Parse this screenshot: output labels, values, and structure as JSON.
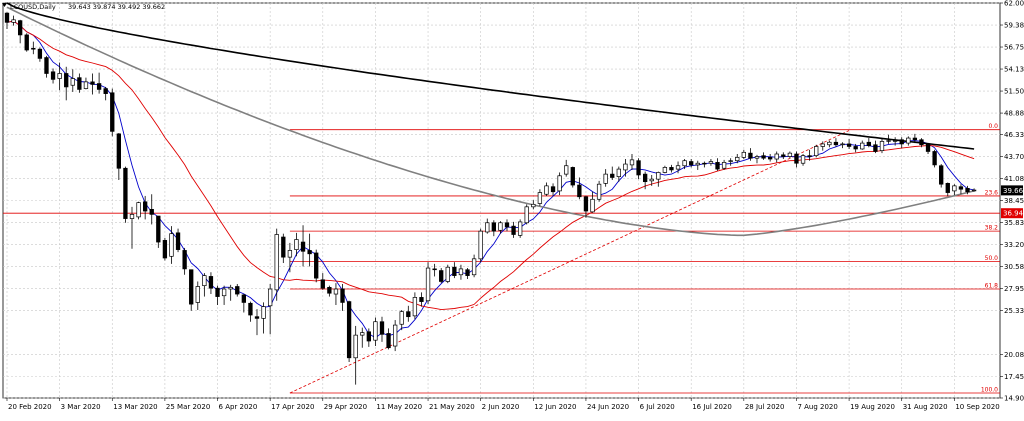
{
  "chart_data": {
    "type": "candlestick",
    "symbol": "LCOUSD,Daily",
    "ohlc_text": "39.643 39.874 39.492 39.662",
    "ylim": [
      14.905,
      62.005
    ],
    "y_ticks": [
      "62.005",
      "59.380",
      "56.755",
      "54.130",
      "51.505",
      "48.880",
      "46.330",
      "43.705",
      "41.080",
      "38.455",
      "35.830",
      "33.205",
      "30.580",
      "27.955",
      "25.330",
      "20.080",
      "17.455",
      "14.905"
    ],
    "x_labels": [
      "20 Feb 2020",
      "3 Mar 2020",
      "13 Mar 2020",
      "25 Mar 2020",
      "6 Apr 2020",
      "17 Apr 2020",
      "29 Apr 2020",
      "11 May 2020",
      "21 May 2020",
      "2 Jun 2020",
      "12 Jun 2020",
      "24 Jun 2020",
      "6 Jul 2020",
      "16 Jul 2020",
      "28 Jul 2020",
      "7 Aug 2020",
      "19 Aug 2020",
      "31 Aug 2020",
      "10 Sep 2020"
    ],
    "x_label_index": [
      0,
      8,
      16,
      24,
      32,
      40,
      48,
      56,
      64,
      72,
      80,
      88,
      96,
      104,
      112,
      120,
      128,
      136,
      144
    ],
    "current_price": "39.662",
    "red_level": "36.940",
    "fib_levels": [
      {
        "label": "0.0",
        "value": 46.9
      },
      {
        "label": "23.6",
        "value": 39.0
      },
      {
        "label": "38.2",
        "value": 34.8
      },
      {
        "label": "50.0",
        "value": 31.2
      },
      {
        "label": "61.8",
        "value": 27.9
      },
      {
        "label": "100.0",
        "value": 15.5
      }
    ],
    "fib_start_index": 43,
    "trendline": {
      "from": [
        43,
        15.5
      ],
      "to": [
        128,
        46.8
      ]
    },
    "bar_count": 148,
    "candles": [
      [
        60.8,
        60.9,
        58.9,
        59.7
      ],
      [
        59.7,
        60.5,
        59.3,
        60.0
      ],
      [
        59.9,
        60.0,
        57.2,
        58.2
      ],
      [
        58.2,
        58.4,
        56.2,
        56.4
      ],
      [
        56.6,
        57.4,
        55.9,
        56.5
      ],
      [
        56.5,
        56.7,
        55.0,
        55.4
      ],
      [
        55.5,
        55.7,
        53.1,
        53.6
      ],
      [
        53.8,
        54.2,
        52.4,
        52.9
      ],
      [
        53.0,
        54.9,
        51.6,
        53.6
      ],
      [
        53.6,
        54.4,
        50.4,
        52.0
      ],
      [
        52.2,
        54.1,
        51.4,
        53.0
      ],
      [
        53.1,
        53.6,
        51.3,
        51.7
      ],
      [
        51.8,
        53.1,
        51.7,
        52.6
      ],
      [
        52.6,
        53.6,
        51.1,
        52.3
      ],
      [
        52.4,
        53.7,
        51.2,
        51.7
      ],
      [
        51.8,
        52.0,
        50.4,
        51.2
      ],
      [
        51.3,
        51.8,
        46.1,
        46.7
      ],
      [
        46.4,
        46.5,
        40.9,
        42.3
      ],
      [
        42.3,
        42.5,
        35.8,
        36.3
      ],
      [
        36.3,
        37.7,
        32.7,
        36.8
      ],
      [
        36.5,
        38.3,
        36.2,
        38.2
      ],
      [
        38.3,
        39.0,
        36.2,
        37.2
      ],
      [
        37.4,
        39.2,
        35.6,
        36.8
      ],
      [
        36.6,
        36.6,
        32.8,
        33.5
      ],
      [
        33.7,
        34.0,
        31.3,
        31.6
      ],
      [
        31.8,
        35.4,
        30.9,
        34.5
      ],
      [
        34.6,
        35.1,
        32.3,
        32.6
      ],
      [
        32.5,
        32.8,
        29.6,
        30.3
      ],
      [
        30.2,
        30.2,
        25.3,
        26.1
      ],
      [
        26.3,
        28.8,
        25.4,
        28.2
      ],
      [
        28.3,
        29.8,
        27.0,
        29.5
      ],
      [
        29.4,
        29.9,
        27.3,
        28.0
      ],
      [
        28.0,
        28.3,
        26.0,
        27.0
      ],
      [
        27.1,
        28.3,
        26.0,
        27.9
      ],
      [
        27.9,
        28.4,
        26.5,
        28.1
      ],
      [
        28.2,
        28.5,
        27.0,
        27.3
      ],
      [
        27.2,
        27.3,
        25.1,
        26.3
      ],
      [
        26.2,
        26.4,
        24.0,
        24.8
      ],
      [
        24.6,
        25.5,
        22.4,
        24.4
      ],
      [
        24.4,
        26.3,
        22.6,
        25.8
      ],
      [
        25.9,
        28.5,
        22.5,
        27.9
      ],
      [
        27.8,
        35.1,
        26.5,
        34.4
      ],
      [
        34.1,
        34.5,
        31.0,
        31.7
      ],
      [
        31.7,
        33.4,
        29.9,
        32.5
      ],
      [
        32.6,
        34.6,
        31.8,
        33.8
      ],
      [
        33.5,
        35.5,
        30.6,
        32.4
      ],
      [
        32.5,
        34.5,
        30.6,
        32.1
      ],
      [
        32.2,
        32.6,
        28.7,
        29.2
      ],
      [
        29.0,
        29.8,
        27.8,
        28.0
      ],
      [
        28.1,
        28.3,
        27.0,
        27.4
      ],
      [
        27.3,
        28.6,
        26.0,
        27.9
      ],
      [
        27.9,
        28.5,
        25.3,
        26.3
      ],
      [
        26.4,
        26.5,
        19.2,
        19.7
      ],
      [
        19.7,
        23.5,
        16.5,
        22.4
      ],
      [
        22.4,
        23.3,
        20.9,
        22.7
      ],
      [
        22.8,
        23.2,
        21.0,
        21.7
      ],
      [
        21.8,
        24.5,
        21.1,
        24.0
      ],
      [
        24.0,
        24.6,
        21.6,
        22.5
      ],
      [
        22.6,
        23.2,
        20.7,
        20.9
      ],
      [
        21.1,
        24.2,
        20.5,
        23.6
      ],
      [
        23.7,
        25.4,
        23.0,
        25.2
      ],
      [
        25.2,
        25.9,
        24.0,
        24.6
      ],
      [
        24.7,
        27.5,
        24.3,
        26.9
      ],
      [
        26.9,
        27.5,
        25.8,
        26.4
      ],
      [
        26.5,
        31.1,
        26.1,
        30.4
      ],
      [
        30.3,
        30.9,
        29.4,
        30.2
      ],
      [
        30.1,
        30.4,
        28.6,
        28.8
      ],
      [
        28.8,
        30.8,
        28.6,
        30.5
      ],
      [
        30.5,
        31.1,
        29.2,
        29.5
      ],
      [
        29.6,
        30.8,
        29.0,
        30.3
      ],
      [
        30.2,
        30.4,
        29.1,
        29.5
      ],
      [
        29.6,
        32.0,
        29.3,
        31.5
      ],
      [
        31.5,
        35.1,
        31.1,
        34.8
      ],
      [
        34.7,
        36.3,
        34.5,
        35.8
      ],
      [
        35.8,
        36.1,
        34.2,
        34.8
      ],
      [
        34.9,
        36.0,
        34.5,
        35.8
      ],
      [
        35.8,
        36.2,
        34.8,
        35.3
      ],
      [
        35.4,
        35.9,
        34.0,
        34.4
      ],
      [
        34.3,
        36.2,
        34.0,
        35.9
      ],
      [
        35.8,
        38.0,
        35.6,
        37.7
      ],
      [
        37.7,
        38.5,
        37.4,
        38.0
      ],
      [
        38.1,
        39.8,
        37.8,
        39.4
      ],
      [
        39.2,
        40.6,
        39.0,
        40.2
      ],
      [
        40.1,
        40.5,
        39.0,
        39.5
      ],
      [
        39.6,
        41.8,
        39.1,
        41.4
      ],
      [
        41.6,
        43.3,
        41.3,
        42.6
      ],
      [
        42.4,
        42.5,
        40.0,
        40.3
      ],
      [
        40.3,
        41.2,
        38.6,
        38.9
      ],
      [
        38.9,
        39.0,
        36.4,
        37.2
      ],
      [
        37.1,
        39.5,
        37.0,
        38.6
      ],
      [
        38.6,
        40.8,
        38.3,
        40.4
      ],
      [
        40.5,
        42.2,
        40.1,
        41.6
      ],
      [
        41.6,
        42.5,
        40.9,
        41.2
      ],
      [
        41.3,
        42.5,
        40.7,
        42.2
      ],
      [
        42.1,
        43.4,
        41.3,
        42.8
      ],
      [
        42.7,
        44.0,
        42.1,
        43.3
      ],
      [
        43.2,
        43.5,
        41.0,
        41.5
      ],
      [
        41.6,
        41.9,
        39.8,
        40.7
      ],
      [
        40.8,
        41.5,
        40.2,
        41.0
      ],
      [
        41.0,
        41.9,
        40.1,
        41.8
      ],
      [
        41.8,
        42.6,
        41.7,
        42.4
      ],
      [
        42.4,
        42.7,
        41.8,
        42.1
      ],
      [
        42.2,
        43.1,
        41.7,
        42.6
      ],
      [
        42.6,
        43.4,
        42.2,
        43.2
      ],
      [
        43.1,
        43.4,
        42.4,
        42.7
      ],
      [
        42.7,
        43.2,
        42.1,
        42.9
      ],
      [
        42.9,
        43.1,
        42.4,
        42.8
      ],
      [
        42.9,
        43.4,
        42.6,
        43.1
      ],
      [
        43.0,
        43.5,
        42.0,
        42.2
      ],
      [
        42.3,
        43.3,
        42.1,
        43.0
      ],
      [
        43.1,
        43.5,
        42.6,
        43.2
      ],
      [
        43.2,
        44.0,
        42.9,
        43.6
      ],
      [
        43.6,
        44.5,
        43.4,
        44.2
      ],
      [
        44.1,
        44.7,
        43.2,
        43.5
      ],
      [
        43.5,
        43.9,
        42.9,
        43.7
      ],
      [
        43.8,
        44.2,
        43.3,
        43.5
      ],
      [
        43.6,
        44.0,
        43.1,
        43.4
      ],
      [
        43.4,
        44.3,
        43.0,
        44.0
      ],
      [
        43.9,
        44.2,
        43.4,
        43.7
      ],
      [
        43.7,
        44.3,
        43.5,
        44.1
      ],
      [
        44.0,
        44.3,
        42.4,
        42.9
      ],
      [
        42.9,
        44.0,
        42.6,
        43.8
      ],
      [
        43.8,
        44.5,
        43.2,
        43.7
      ],
      [
        43.8,
        45.1,
        43.6,
        44.9
      ],
      [
        44.9,
        45.5,
        44.4,
        45.2
      ],
      [
        45.1,
        45.6,
        44.8,
        45.4
      ],
      [
        45.4,
        45.9,
        44.9,
        45.1
      ],
      [
        45.1,
        45.4,
        44.7,
        45.2
      ],
      [
        45.2,
        45.8,
        44.6,
        44.9
      ],
      [
        44.9,
        45.2,
        44.2,
        44.6
      ],
      [
        44.6,
        45.6,
        44.5,
        45.3
      ],
      [
        45.4,
        45.9,
        44.8,
        45.0
      ],
      [
        45.1,
        45.6,
        44.1,
        44.3
      ],
      [
        44.4,
        45.8,
        44.1,
        45.5
      ],
      [
        45.6,
        46.3,
        45.2,
        45.6
      ],
      [
        45.6,
        46.0,
        45.0,
        45.6
      ],
      [
        45.7,
        46.0,
        44.7,
        45.2
      ],
      [
        45.3,
        46.1,
        45.0,
        45.9
      ],
      [
        45.9,
        46.4,
        45.3,
        45.7
      ],
      [
        45.7,
        45.9,
        44.8,
        45.1
      ],
      [
        45.2,
        45.3,
        44.0,
        44.3
      ],
      [
        44.3,
        44.5,
        42.4,
        42.7
      ],
      [
        42.6,
        42.8,
        40.0,
        40.4
      ],
      [
        40.5,
        40.6,
        39.0,
        39.4
      ],
      [
        39.6,
        40.4,
        39.1,
        40.2
      ],
      [
        40.1,
        40.4,
        39.2,
        39.8
      ],
      [
        39.9,
        40.2,
        39.2,
        39.5
      ],
      [
        39.6,
        39.9,
        39.5,
        39.7
      ]
    ],
    "series": [
      {
        "key": "ma_blue",
        "color": "#0000cc"
      },
      {
        "key": "ma_red",
        "color": "#e00000"
      },
      {
        "key": "ma_gray",
        "color": "#808080"
      },
      {
        "key": "ma_black",
        "color": "#000000"
      }
    ]
  }
}
